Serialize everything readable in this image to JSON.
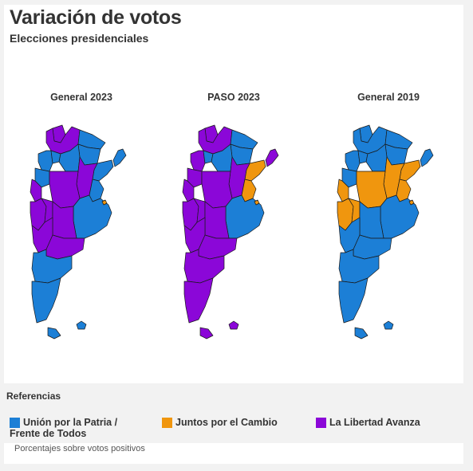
{
  "header": {
    "title": "Variación de votos",
    "subtitle": "Elecciones presidenciales"
  },
  "colors": {
    "union": "#1c7fd6",
    "juntos": "#f0960e",
    "libertad": "#8b07d8"
  },
  "maps": [
    {
      "label": "General 2023",
      "regions": {
        "jujuy": "libertad",
        "salta": "libertad",
        "formosa": "union",
        "chaco": "union",
        "misiones": "union",
        "catamarca": "union",
        "tucuman": "union",
        "santiago": "union",
        "corrientes": "union",
        "larioja": "union",
        "santafe": "libertad",
        "entrerios": "union",
        "sanjuan": "libertad",
        "cordoba": "libertad",
        "mendoza": "libertad",
        "sanluis": "libertad",
        "buenosaires": "union",
        "lapampa": "libertad",
        "caba": "juntos",
        "neuquen": "libertad",
        "rionegro": "libertad",
        "chubut": "union",
        "santacruz": "union",
        "tierradelfuego": "union",
        "malvinas": "union"
      }
    },
    {
      "label": "PASO 2023",
      "regions": {
        "jujuy": "libertad",
        "salta": "libertad",
        "formosa": "union",
        "chaco": "union",
        "misiones": "libertad",
        "catamarca": "libertad",
        "tucuman": "union",
        "santiago": "union",
        "corrientes": "juntos",
        "larioja": "libertad",
        "santafe": "libertad",
        "entrerios": "juntos",
        "sanjuan": "libertad",
        "cordoba": "libertad",
        "mendoza": "libertad",
        "sanluis": "libertad",
        "buenosaires": "union",
        "lapampa": "libertad",
        "caba": "juntos",
        "neuquen": "libertad",
        "rionegro": "libertad",
        "chubut": "libertad",
        "santacruz": "libertad",
        "tierradelfuego": "libertad",
        "malvinas": "libertad"
      }
    },
    {
      "label": "General 2019",
      "regions": {
        "jujuy": "union",
        "salta": "union",
        "formosa": "union",
        "chaco": "union",
        "misiones": "union",
        "catamarca": "union",
        "tucuman": "union",
        "santiago": "union",
        "corrientes": "juntos",
        "larioja": "union",
        "santafe": "juntos",
        "entrerios": "juntos",
        "sanjuan": "juntos",
        "cordoba": "juntos",
        "mendoza": "juntos",
        "sanluis": "juntos",
        "buenosaires": "union",
        "lapampa": "union",
        "caba": "juntos",
        "neuquen": "union",
        "rionegro": "union",
        "chubut": "union",
        "santacruz": "union",
        "tierradelfuego": "union",
        "malvinas": "union"
      }
    }
  ],
  "legend": {
    "title": "Referencias",
    "items": [
      {
        "label": "Unión por la Patria /",
        "label2": "Frente de Todos",
        "color": "#1c7fd6"
      },
      {
        "label": "Juntos por el Cambio",
        "label2": "",
        "color": "#f0960e"
      },
      {
        "label": "La Libertad Avanza",
        "label2": "",
        "color": "#8b07d8"
      }
    ]
  },
  "note": "Porcentajes sobre votos positivos"
}
